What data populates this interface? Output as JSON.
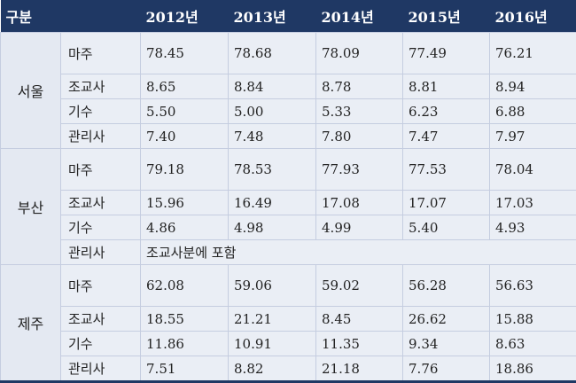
{
  "table": {
    "header": [
      "구분",
      "2012년",
      "2013년",
      "2014년",
      "2015년",
      "2016년"
    ],
    "groups": [
      {
        "name": "서울",
        "rows": [
          {
            "role": "마주",
            "values": [
              "78.45",
              "78.68",
              "78.09",
              "77.49",
              "76.21"
            ]
          },
          {
            "role": "조교사",
            "values": [
              "8.65",
              "8.84",
              "8.78",
              "8.81",
              "8.94"
            ]
          },
          {
            "role": "기수",
            "values": [
              "5.50",
              "5.00",
              "5.33",
              "6.23",
              "6.88"
            ]
          },
          {
            "role": "관리사",
            "values": [
              "7.40",
              "7.48",
              "7.80",
              "7.47",
              "7.97"
            ]
          }
        ]
      },
      {
        "name": "부산",
        "rows": [
          {
            "role": "마주",
            "values": [
              "79.18",
              "78.53",
              "77.93",
              "77.53",
              "78.04"
            ]
          },
          {
            "role": "조교사",
            "values": [
              "15.96",
              "16.49",
              "17.08",
              "17.07",
              "17.03"
            ]
          },
          {
            "role": "기수",
            "values": [
              "4.86",
              "4.98",
              "4.99",
              "5.40",
              "4.93"
            ]
          },
          {
            "role": "관리사",
            "note": "조교사분에 포함"
          }
        ]
      },
      {
        "name": "제주",
        "rows": [
          {
            "role": "마주",
            "values": [
              "62.08",
              "59.06",
              "59.02",
              "56.28",
              "56.63"
            ]
          },
          {
            "role": "조교사",
            "values": [
              "18.55",
              "21.21",
              "8.45",
              "26.62",
              "15.88"
            ]
          },
          {
            "role": "기수",
            "values": [
              "11.86",
              "10.91",
              "11.35",
              "9.34",
              "8.63"
            ]
          },
          {
            "role": "관리사",
            "values": [
              "7.51",
              "8.82",
              "21.18",
              "7.76",
              "18.86"
            ]
          }
        ]
      }
    ]
  }
}
